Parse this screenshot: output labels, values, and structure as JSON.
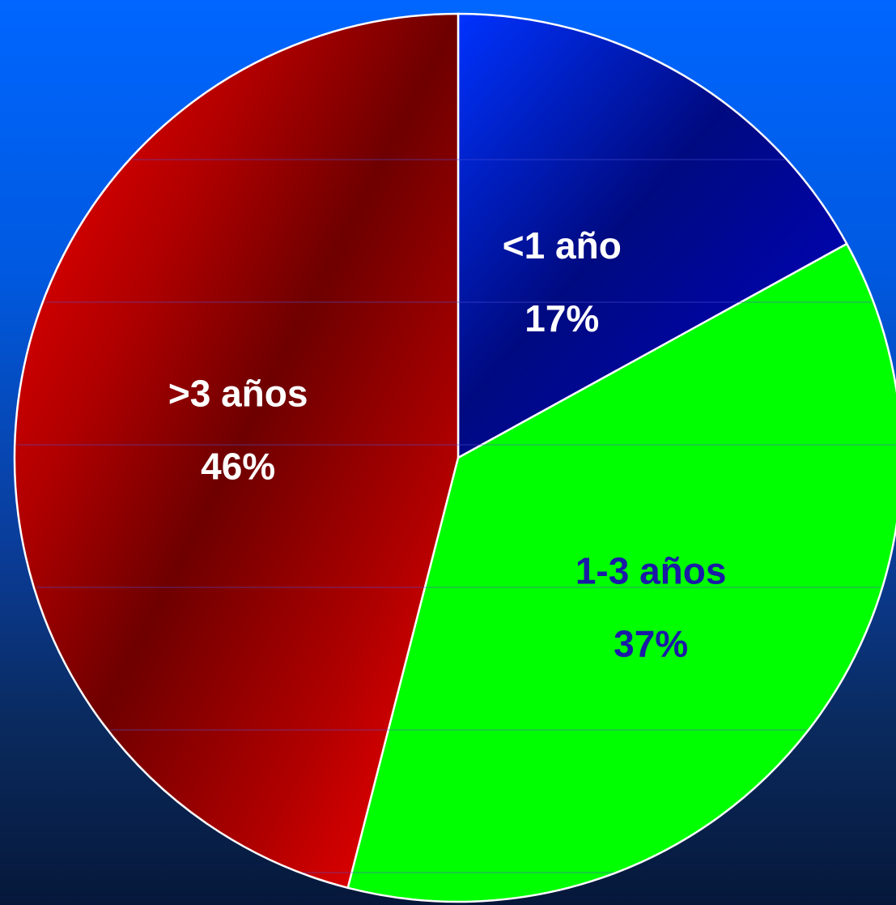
{
  "chart_data": {
    "type": "pie",
    "slices": [
      {
        "category": "<1 año",
        "label": "17%",
        "value": 17,
        "color": "#0000ff",
        "dark_color": "#000080",
        "text_color": "#ffffff"
      },
      {
        "category": "1-3 años",
        "label": "37%",
        "value": 37,
        "color": "#00ff00",
        "dark_color": "#00ff00",
        "text_color": "#1a1aa6"
      },
      {
        "category": ">3 años",
        "label": "46%",
        "value": 46,
        "color": "#ee0000",
        "dark_color": "#700000",
        "text_color": "#ffffff"
      }
    ],
    "start_direction": "top",
    "order": "clockwise",
    "legend": "none"
  }
}
